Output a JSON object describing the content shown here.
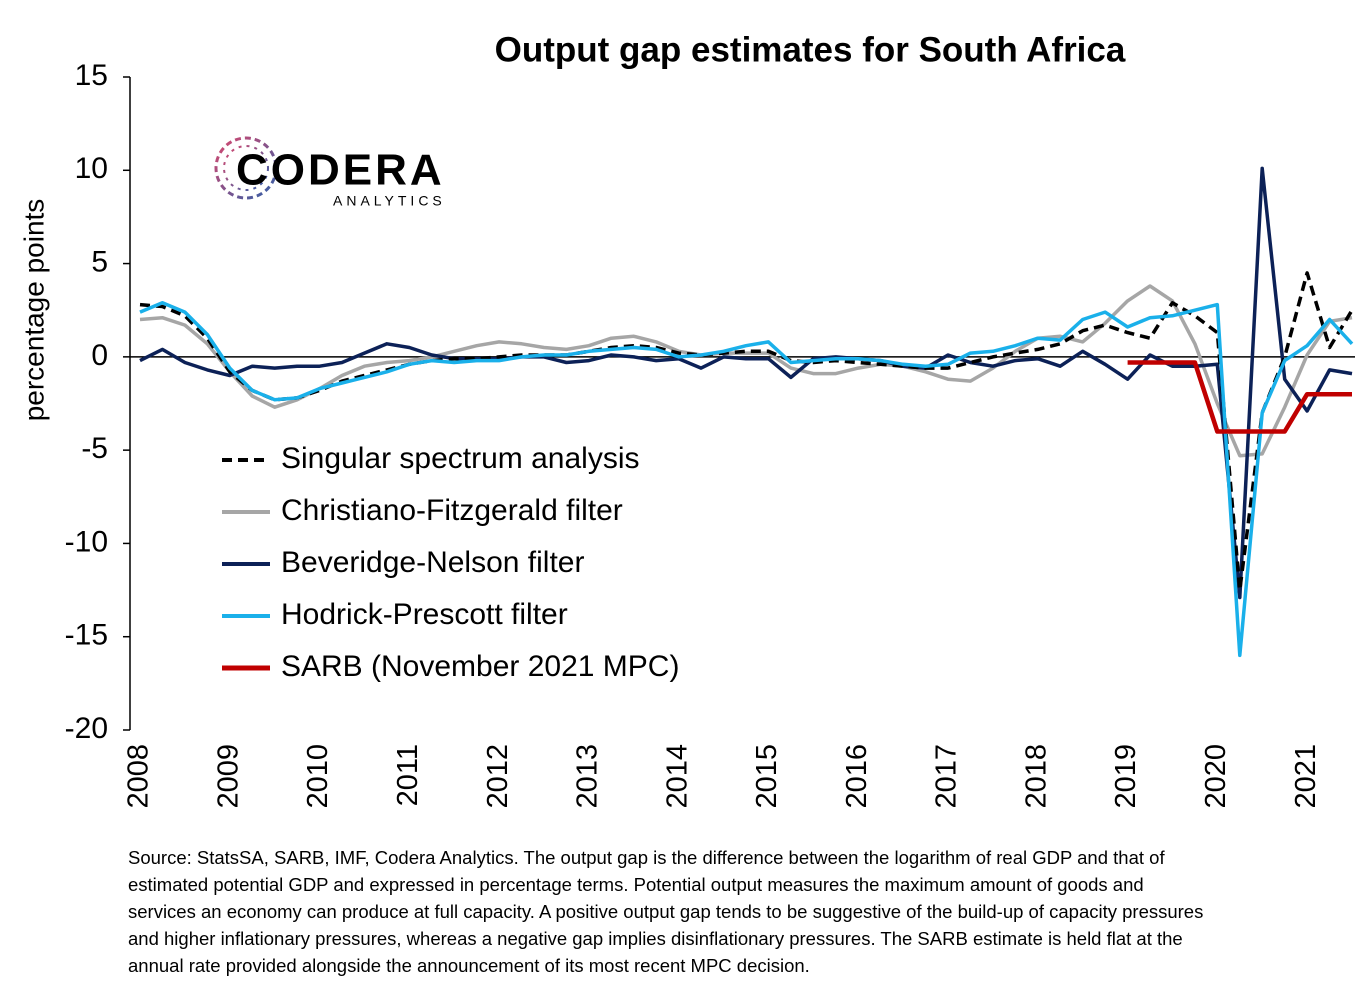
{
  "chart_data": {
    "type": "line",
    "title": "Output gap estimates for South Africa",
    "ylabel": "percentage points",
    "logo": {
      "name": "CODERA",
      "sub": "ANALYTICS"
    },
    "x": [
      2008,
      2008.25,
      2008.5,
      2008.75,
      2009,
      2009.25,
      2009.5,
      2009.75,
      2010,
      2010.25,
      2010.5,
      2010.75,
      2011,
      2011.25,
      2011.5,
      2011.75,
      2012,
      2012.25,
      2012.5,
      2012.75,
      2013,
      2013.25,
      2013.5,
      2013.75,
      2014,
      2014.25,
      2014.5,
      2014.75,
      2015,
      2015.25,
      2015.5,
      2015.75,
      2016,
      2016.25,
      2016.5,
      2016.75,
      2017,
      2017.25,
      2017.5,
      2017.75,
      2018,
      2018.25,
      2018.5,
      2018.75,
      2019,
      2019.25,
      2019.5,
      2019.75,
      2020,
      2020.25,
      2020.5,
      2020.75,
      2021,
      2021.25,
      2021.5
    ],
    "xlim": [
      2008,
      2021.5
    ],
    "xticks": [
      2008,
      2009,
      2010,
      2011,
      2012,
      2013,
      2014,
      2015,
      2016,
      2017,
      2018,
      2019,
      2020,
      2021
    ],
    "ylim": [
      -20,
      15
    ],
    "yticks": [
      -20,
      -15,
      -10,
      -5,
      0,
      5,
      10,
      15
    ],
    "zero_line": true,
    "legend": "lower-left",
    "series": [
      {
        "name": "Singular spectrum analysis",
        "color": "#000000",
        "dashed": true,
        "values": [
          2.8,
          2.7,
          2.2,
          1.0,
          -0.8,
          -1.8,
          -2.3,
          -2.2,
          -1.8,
          -1.3,
          -1.0,
          -0.7,
          -0.4,
          -0.2,
          -0.1,
          -0.1,
          0,
          0.1,
          0.1,
          0.1,
          0.3,
          0.5,
          0.6,
          0.5,
          0.2,
          0.1,
          0.2,
          0.3,
          0.3,
          -0.2,
          -0.3,
          -0.2,
          -0.3,
          -0.4,
          -0.5,
          -0.6,
          -0.6,
          -0.3,
          0,
          0.2,
          0.4,
          0.7,
          1.4,
          1.7,
          1.3,
          1.0,
          2.9,
          2.2,
          1.3,
          -12.5,
          -3,
          0,
          4.5,
          0.5,
          2.5
        ]
      },
      {
        "name": "Christiano-Fitzgerald filter",
        "color": "#a6a6a6",
        "values": [
          2.0,
          2.1,
          1.7,
          0.7,
          -0.8,
          -2.1,
          -2.7,
          -2.3,
          -1.7,
          -1.0,
          -0.5,
          -0.3,
          -0.2,
          0.0,
          0.3,
          0.6,
          0.8,
          0.7,
          0.5,
          0.4,
          0.6,
          1.0,
          1.1,
          0.8,
          0.3,
          0.1,
          0.2,
          0.2,
          0.2,
          -0.6,
          -0.9,
          -0.9,
          -0.6,
          -0.4,
          -0.5,
          -0.8,
          -1.2,
          -1.3,
          -0.6,
          0.3,
          1.0,
          1.1,
          0.8,
          1.8,
          3.0,
          3.8,
          3.0,
          0.7,
          -2.5,
          -5.3,
          -5.2,
          -2.7,
          0.1,
          1.9,
          2.1
        ]
      },
      {
        "name": "Beveridge-Nelson filter",
        "color": "#0c2157",
        "values": [
          -0.2,
          0.4,
          -0.3,
          -0.7,
          -1.0,
          -0.5,
          -0.6,
          -0.5,
          -0.5,
          -0.3,
          0.2,
          0.7,
          0.5,
          0.1,
          -0.1,
          -0.1,
          -0.1,
          0.0,
          0.0,
          -0.3,
          -0.2,
          0.1,
          0.0,
          -0.2,
          -0.1,
          -0.6,
          0.0,
          -0.1,
          -0.1,
          -1.1,
          -0.1,
          0.0,
          -0.1,
          -0.2,
          -0.5,
          -0.6,
          0.1,
          -0.3,
          -0.5,
          -0.2,
          -0.1,
          -0.5,
          0.3,
          -0.4,
          -1.2,
          0.1,
          -0.5,
          -0.5,
          -0.4,
          -12.9,
          10.1,
          -1.2,
          -2.9,
          -0.7,
          -0.9
        ]
      },
      {
        "name": "Hodrick-Prescott filter",
        "color": "#1ab0ea",
        "values": [
          2.4,
          2.9,
          2.4,
          1.2,
          -0.6,
          -1.8,
          -2.3,
          -2.2,
          -1.7,
          -1.4,
          -1.1,
          -0.8,
          -0.4,
          -0.2,
          -0.3,
          -0.2,
          -0.2,
          0.0,
          0.1,
          0.1,
          0.3,
          0.4,
          0.5,
          0.4,
          0.0,
          0.1,
          0.3,
          0.6,
          0.8,
          -0.3,
          -0.2,
          -0.1,
          -0.1,
          -0.2,
          -0.4,
          -0.5,
          -0.4,
          0.2,
          0.3,
          0.6,
          1.0,
          0.9,
          2.0,
          2.4,
          1.6,
          2.1,
          2.2,
          2.5,
          2.8,
          -16.0,
          -3.0,
          -0.2,
          0.6,
          2.0,
          0.7
        ]
      },
      {
        "name": "SARB (November 2021 MPC)",
        "color": "#c00000",
        "values": [
          null,
          null,
          null,
          null,
          null,
          null,
          null,
          null,
          null,
          null,
          null,
          null,
          null,
          null,
          null,
          null,
          null,
          null,
          null,
          null,
          null,
          null,
          null,
          null,
          null,
          null,
          null,
          null,
          null,
          null,
          null,
          null,
          null,
          null,
          null,
          null,
          null,
          null,
          null,
          null,
          null,
          null,
          null,
          null,
          -0.3,
          -0.3,
          -0.3,
          -0.3,
          -4,
          -4,
          -4,
          -4,
          -2,
          -2,
          -2
        ]
      }
    ],
    "source": [
      "Source: StatsSA, SARB, IMF, Codera Analytics. The output gap is the difference between the logarithm of real GDP and that of",
      "estimated potential GDP and expressed in percentage terms. Potential output measures the maximum amount of goods and",
      "services an economy can produce at full capacity. A positive output gap tends to be suggestive of the build-up of capacity pressures",
      "and higher inflationary pressures, whereas a negative gap implies disinflationary pressures. The SARB estimate is held flat at the",
      "annual rate provided alongside the announcement of its most recent MPC decision."
    ]
  }
}
